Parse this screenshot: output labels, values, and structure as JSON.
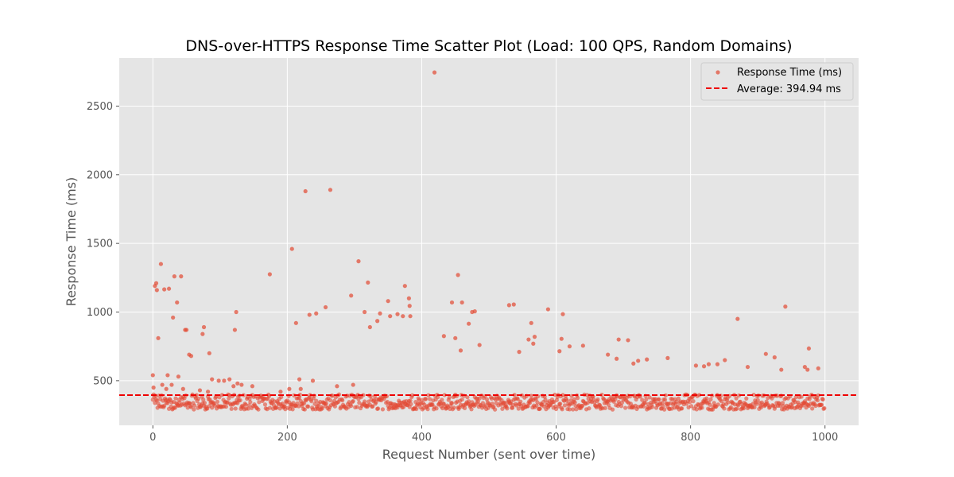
{
  "chart_data": {
    "type": "scatter",
    "title": "DNS-over-HTTPS Response Time Scatter Plot (Load: 100 QPS, Random Domains)",
    "xlabel": "Request Number (sent over time)",
    "ylabel": "Response Time (ms)",
    "xlim": [
      -50,
      1050
    ],
    "ylim": [
      175,
      2850
    ],
    "xticks": [
      0,
      200,
      400,
      600,
      800,
      1000
    ],
    "yticks": [
      500,
      1000,
      1500,
      2000,
      2500
    ],
    "xtick_labels": [
      "0",
      "200",
      "400",
      "600",
      "800",
      "1000"
    ],
    "ytick_labels": [
      "500",
      "1000",
      "1500",
      "2000",
      "2500"
    ],
    "grid": true,
    "legend_position": "top-right",
    "series": [
      {
        "name": "Response Time (ms)",
        "kind": "scatter",
        "color": "#e24a33",
        "outliers": [
          [
            0,
            540
          ],
          [
            1,
            450
          ],
          [
            3,
            1190
          ],
          [
            5,
            1210
          ],
          [
            6,
            1160
          ],
          [
            8,
            810
          ],
          [
            12,
            1350
          ],
          [
            14,
            470
          ],
          [
            17,
            1165
          ],
          [
            20,
            440
          ],
          [
            22,
            540
          ],
          [
            24,
            1170
          ],
          [
            28,
            470
          ],
          [
            30,
            960
          ],
          [
            32,
            1260
          ],
          [
            36,
            1070
          ],
          [
            38,
            530
          ],
          [
            42,
            1260
          ],
          [
            45,
            440
          ],
          [
            48,
            870
          ],
          [
            50,
            870
          ],
          [
            54,
            690
          ],
          [
            57,
            680
          ],
          [
            70,
            430
          ],
          [
            74,
            840
          ],
          [
            76,
            890
          ],
          [
            82,
            420
          ],
          [
            84,
            700
          ],
          [
            88,
            510
          ],
          [
            98,
            500
          ],
          [
            106,
            500
          ],
          [
            114,
            510
          ],
          [
            120,
            460
          ],
          [
            122,
            870
          ],
          [
            124,
            1000
          ],
          [
            126,
            480
          ],
          [
            132,
            470
          ],
          [
            148,
            460
          ],
          [
            174,
            1275
          ],
          [
            190,
            420
          ],
          [
            203,
            440
          ],
          [
            207,
            1460
          ],
          [
            213,
            920
          ],
          [
            218,
            510
          ],
          [
            220,
            440
          ],
          [
            227,
            1880
          ],
          [
            233,
            980
          ],
          [
            238,
            500
          ],
          [
            243,
            990
          ],
          [
            257,
            1035
          ],
          [
            264,
            1890
          ],
          [
            274,
            460
          ],
          [
            295,
            1120
          ],
          [
            298,
            470
          ],
          [
            306,
            1370
          ],
          [
            315,
            1000
          ],
          [
            320,
            1215
          ],
          [
            323,
            890
          ],
          [
            334,
            935
          ],
          [
            338,
            990
          ],
          [
            350,
            1080
          ],
          [
            353,
            970
          ],
          [
            364,
            985
          ],
          [
            372,
            970
          ],
          [
            375,
            1190
          ],
          [
            381,
            1100
          ],
          [
            382,
            1045
          ],
          [
            383,
            970
          ],
          [
            419,
            2745
          ],
          [
            433,
            825
          ],
          [
            445,
            1070
          ],
          [
            450,
            810
          ],
          [
            454,
            1270
          ],
          [
            458,
            720
          ],
          [
            460,
            1070
          ],
          [
            470,
            915
          ],
          [
            475,
            1000
          ],
          [
            479,
            1005
          ],
          [
            486,
            760
          ],
          [
            530,
            1050
          ],
          [
            537,
            1055
          ],
          [
            545,
            710
          ],
          [
            559,
            800
          ],
          [
            563,
            920
          ],
          [
            566,
            770
          ],
          [
            568,
            820
          ],
          [
            588,
            1020
          ],
          [
            605,
            715
          ],
          [
            608,
            805
          ],
          [
            610,
            985
          ],
          [
            620,
            750
          ],
          [
            640,
            755
          ],
          [
            677,
            690
          ],
          [
            690,
            660
          ],
          [
            693,
            800
          ],
          [
            707,
            795
          ],
          [
            715,
            625
          ],
          [
            722,
            645
          ],
          [
            735,
            655
          ],
          [
            766,
            665
          ],
          [
            808,
            610
          ],
          [
            820,
            605
          ],
          [
            827,
            620
          ],
          [
            840,
            620
          ],
          [
            851,
            650
          ],
          [
            870,
            950
          ],
          [
            885,
            600
          ],
          [
            912,
            695
          ],
          [
            925,
            670
          ],
          [
            935,
            580
          ],
          [
            941,
            1040
          ],
          [
            970,
            600
          ],
          [
            974,
            580
          ],
          [
            976,
            735
          ],
          [
            990,
            590
          ]
        ],
        "baseline": {
          "count": 1000,
          "x_range": [
            0,
            999
          ],
          "levels_ms": [
            {
              "from": 290,
              "to": 345
            },
            {
              "from": 345,
              "to": 400
            }
          ]
        }
      },
      {
        "name": "Average: 394.94 ms",
        "kind": "hline",
        "value": 394.94,
        "color": "#ee0000",
        "style": "dashed"
      }
    ]
  }
}
